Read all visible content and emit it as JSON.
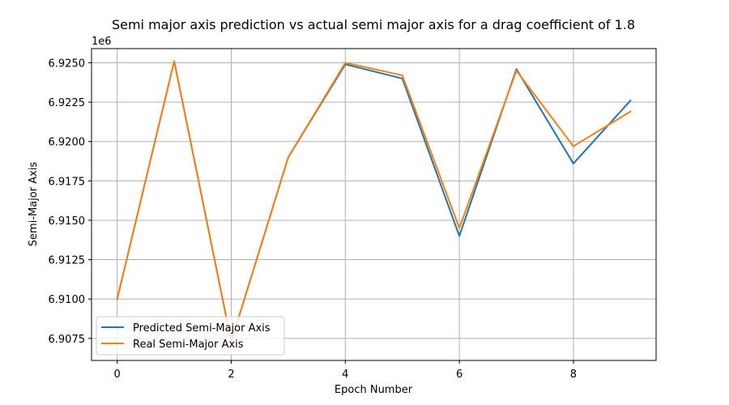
{
  "chart_data": {
    "type": "line",
    "title": "Semi major axis prediction vs actual semi major axis for a drag coefficient of 1.8",
    "xlabel": "Epoch Number",
    "ylabel": "Semi-Major Axis",
    "y_offset_text": "1e6",
    "xlim": [
      -0.45,
      9.45
    ],
    "ylim": [
      6.9061,
      6.9259
    ],
    "x_ticks": [
      0,
      2,
      4,
      6,
      8
    ],
    "x_tick_labels": [
      "0",
      "2",
      "4",
      "6",
      "8"
    ],
    "y_ticks": [
      6.9075,
      6.91,
      6.9125,
      6.915,
      6.9175,
      6.92,
      6.9225,
      6.925
    ],
    "y_tick_labels": [
      "6.9075",
      "6.9100",
      "6.9125",
      "6.9150",
      "6.9175",
      "6.9200",
      "6.9225",
      "6.9250"
    ],
    "grid": true,
    "legend_position": "lower-left",
    "x": [
      0,
      1,
      2,
      3,
      4,
      5,
      6,
      7,
      8,
      9
    ],
    "series": [
      {
        "name": "Predicted Semi-Major Axis",
        "color": "#1f77b4",
        "values": [
          6.91,
          6.9251,
          6.9073,
          6.919,
          6.9249,
          6.924,
          6.914,
          6.9246,
          6.9186,
          6.9226
        ]
      },
      {
        "name": "Real Semi-Major Axis",
        "color": "#ff7f0e",
        "values": [
          6.91,
          6.9251,
          6.9073,
          6.919,
          6.925,
          6.9242,
          6.9145,
          6.9245,
          6.9197,
          6.9219
        ]
      }
    ]
  }
}
